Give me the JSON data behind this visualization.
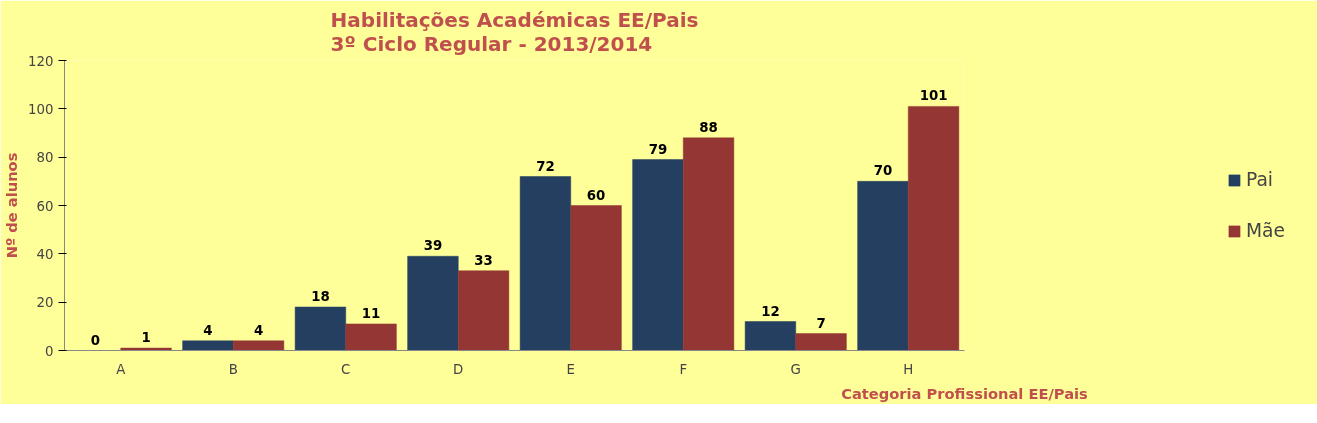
{
  "chart_data": {
    "type": "bar",
    "title": "Habilitações Académicas EE/Pais\n3º Ciclo Regular - 2013/2014",
    "xlabel": "Categoria Profissional EE/Pais",
    "ylabel": "Nº de alunos",
    "categories": [
      "A",
      "B",
      "C",
      "D",
      "E",
      "F",
      "G",
      "H"
    ],
    "series": [
      {
        "name": "Pai",
        "color": "#253f61",
        "values": [
          0,
          4,
          18,
          39,
          72,
          79,
          12,
          70
        ]
      },
      {
        "name": "Mãe",
        "color": "#943634",
        "values": [
          1,
          4,
          11,
          33,
          60,
          88,
          7,
          101
        ]
      }
    ],
    "ylim": [
      0,
      120
    ],
    "yticks": [
      0,
      20,
      40,
      60,
      80,
      100,
      120
    ],
    "grid": false,
    "legend": "right",
    "data_labels": true
  }
}
